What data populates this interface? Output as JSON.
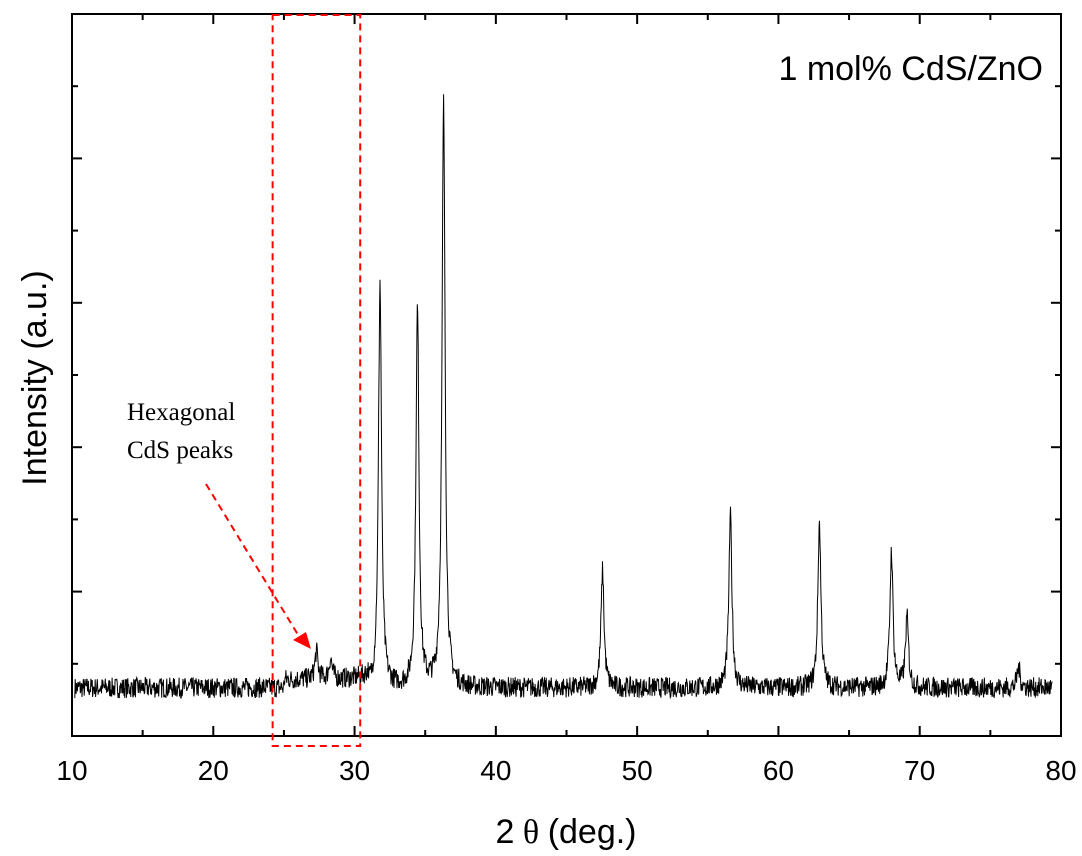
{
  "chart_data": {
    "type": "line",
    "title": "",
    "inset_label": "1 mol% CdS/ZnO",
    "xlabel_prefix": "2",
    "xlabel_symbol": "θ",
    "xlabel_suffix": " (deg.)",
    "ylabel": "Intensity (a.u.)",
    "xlim": [
      10,
      80
    ],
    "ylim": [
      -0.05,
      1.0
    ],
    "x_ticks": [
      10,
      20,
      30,
      40,
      50,
      60,
      70,
      80
    ],
    "x_tick_labels": [
      "10",
      "20",
      "30",
      "40",
      "50",
      "60",
      "70",
      "80"
    ],
    "y_ticks_unlabeled": true,
    "grid": false,
    "legend": "none",
    "series": [
      {
        "baseline": 0.02,
        "noise": 0.03,
        "x_range": [
          10.2,
          79.4
        ],
        "peaks": [
          {
            "x": 27.3,
            "height": 0.04
          },
          {
            "x": 28.3,
            "height": 0.03
          },
          {
            "x": 31.8,
            "height": 0.59
          },
          {
            "x": 34.45,
            "height": 0.55
          },
          {
            "x": 36.3,
            "height": 0.85
          },
          {
            "x": 47.55,
            "height": 0.17
          },
          {
            "x": 56.6,
            "height": 0.25
          },
          {
            "x": 62.9,
            "height": 0.24
          },
          {
            "x": 68.0,
            "height": 0.2
          },
          {
            "x": 69.1,
            "height": 0.1
          },
          {
            "x": 77.0,
            "height": 0.03
          }
        ]
      }
    ],
    "annotation": {
      "text_line1": "Hexagonal",
      "text_line2": "CdS peaks",
      "box_x": [
        24.2,
        30.4
      ],
      "color": "#ff0000"
    }
  }
}
